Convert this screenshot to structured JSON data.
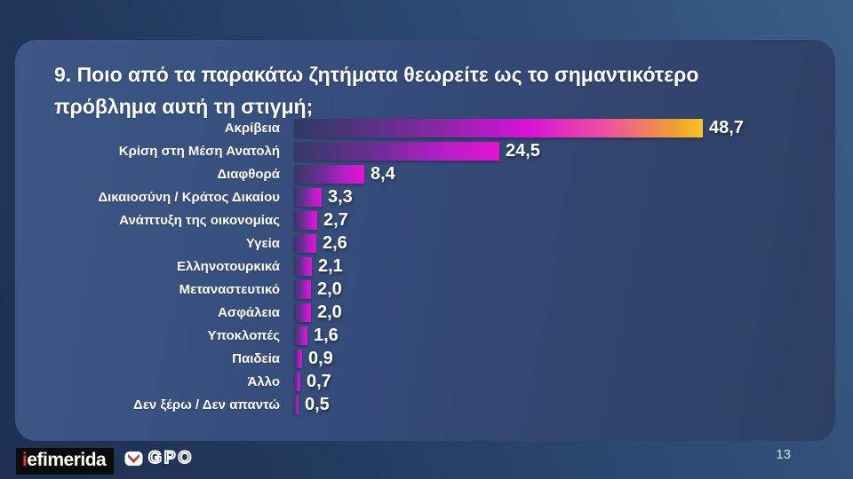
{
  "slide": {
    "title": "9. Ποιο από τα παρακάτω ζητήματα θεωρείτε ως το σημαντικότερο πρόβλημα αυτή τη στιγμή;",
    "page_number": "13"
  },
  "footer": {
    "iefimerida_i": "i",
    "iefimerida_rest": "efimerida",
    "gpo_label": "GPO"
  },
  "colors": {
    "background_dark": "#1d3154",
    "background_light": "#3c5e86",
    "card": "#354b79",
    "bar_magenta": "#e513d6",
    "bar_navy_start": "#2e3a63",
    "bar_orange_end": "#f6c52e",
    "text": "#ffffff",
    "iefimerida_red": "#e8392e",
    "logo_black": "#0b0b0b"
  },
  "chart_data": {
    "type": "bar",
    "orientation": "horizontal",
    "title": "9. Ποιο από τα παρακάτω ζητήματα θεωρείτε ως το σημαντικότερο πρόβλημα αυτή τη στιγμή;",
    "categories": [
      "Ακρίβεια",
      "Κρίση στη Μέση Ανατολή",
      "Διαφθορά",
      "Δικαιοσύνη / Κράτος Δικαίου",
      "Ανάπτυξη της οικονομίας",
      "Υγεία",
      "Ελληνοτουρκικά",
      "Μεταναστευτικό",
      "Ασφάλεια",
      "Υποκλοπές",
      "Παιδεία",
      "Άλλο",
      "Δεν ξέρω / Δεν απαντώ"
    ],
    "values": [
      48.7,
      24.5,
      8.4,
      3.3,
      2.7,
      2.6,
      2.1,
      2.0,
      2.0,
      1.6,
      0.9,
      0.7,
      0.5
    ],
    "value_labels": [
      "48,7",
      "24,5",
      "8,4",
      "3,3",
      "2,7",
      "2,6",
      "2,1",
      "2,0",
      "2,0",
      "1,6",
      "0,9",
      "0,7",
      "0,5"
    ],
    "xlim": [
      0,
      50
    ],
    "grid": false,
    "legend": false,
    "bar_gradient": [
      "#2e3a63",
      "#b120c4",
      "#e513d6"
    ],
    "top_bar_gradient": [
      "#2e3a63",
      "#7c2b9e",
      "#d911d8",
      "#ee549c",
      "#f6c52e"
    ]
  }
}
